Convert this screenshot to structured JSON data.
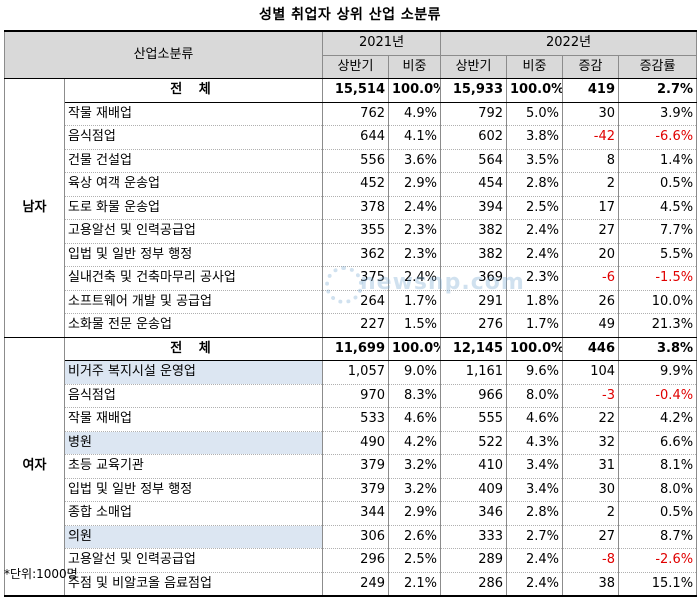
{
  "title": "성별 취업자 상위 산업 소분류",
  "header": {
    "industry": "산업소분류",
    "year2021": "2021년",
    "year2022": "2022년",
    "h1": "상반기",
    "ratio": "비중",
    "h1b": "상반기",
    "ratio2": "비중",
    "diff": "증감",
    "rate": "증감률"
  },
  "men": {
    "group": "남자",
    "total": {
      "label": "전 체",
      "v2021": "15,514",
      "r2021": "100.0%",
      "v2022": "15,933",
      "r2022": "100.0%",
      "diff": "419",
      "rate": "2.7%"
    },
    "rows": [
      {
        "name": "작물 재배업",
        "v2021": "762",
        "r2021": "4.9%",
        "v2022": "792",
        "r2022": "5.0%",
        "diff": "30",
        "rate": "3.9%",
        "neg": false
      },
      {
        "name": "음식점업",
        "v2021": "644",
        "r2021": "4.1%",
        "v2022": "602",
        "r2022": "3.8%",
        "diff": "-42",
        "rate": "-6.6%",
        "neg": true
      },
      {
        "name": "건물 건설업",
        "v2021": "556",
        "r2021": "3.6%",
        "v2022": "564",
        "r2022": "3.5%",
        "diff": "8",
        "rate": "1.4%",
        "neg": false
      },
      {
        "name": "육상 여객 운송업",
        "v2021": "452",
        "r2021": "2.9%",
        "v2022": "454",
        "r2022": "2.8%",
        "diff": "2",
        "rate": "0.5%",
        "neg": false
      },
      {
        "name": "도로 화물 운송업",
        "v2021": "378",
        "r2021": "2.4%",
        "v2022": "394",
        "r2022": "2.5%",
        "diff": "17",
        "rate": "4.5%",
        "neg": false
      },
      {
        "name": "고용알선 및 인력공급업",
        "v2021": "355",
        "r2021": "2.3%",
        "v2022": "382",
        "r2022": "2.4%",
        "diff": "27",
        "rate": "7.7%",
        "neg": false
      },
      {
        "name": "입법 및 일반 정부 행정",
        "v2021": "362",
        "r2021": "2.3%",
        "v2022": "382",
        "r2022": "2.4%",
        "diff": "20",
        "rate": "5.5%",
        "neg": false
      },
      {
        "name": "실내건축 및 건축마무리 공사업",
        "v2021": "375",
        "r2021": "2.4%",
        "v2022": "369",
        "r2022": "2.3%",
        "diff": "-6",
        "rate": "-1.5%",
        "neg": true
      },
      {
        "name": "소프트웨어 개발 및 공급업",
        "v2021": "264",
        "r2021": "1.7%",
        "v2022": "291",
        "r2022": "1.8%",
        "diff": "26",
        "rate": "10.0%",
        "neg": false
      },
      {
        "name": "소화물 전문 운송업",
        "v2021": "227",
        "r2021": "1.5%",
        "v2022": "276",
        "r2022": "1.7%",
        "diff": "49",
        "rate": "21.3%",
        "neg": false
      }
    ]
  },
  "women": {
    "group": "여자",
    "total": {
      "label": "전 체",
      "v2021": "11,699",
      "r2021": "100.0%",
      "v2022": "12,145",
      "r2022": "100.0%",
      "diff": "446",
      "rate": "3.8%"
    },
    "rows": [
      {
        "name": "비거주 복지시설 운영업",
        "v2021": "1,057",
        "r2021": "9.0%",
        "v2022": "1,161",
        "r2022": "9.6%",
        "diff": "104",
        "rate": "9.9%",
        "neg": false,
        "hl": true
      },
      {
        "name": "음식점업",
        "v2021": "970",
        "r2021": "8.3%",
        "v2022": "966",
        "r2022": "8.0%",
        "diff": "-3",
        "rate": "-0.4%",
        "neg": true,
        "hl": false
      },
      {
        "name": "작물 재배업",
        "v2021": "533",
        "r2021": "4.6%",
        "v2022": "555",
        "r2022": "4.6%",
        "diff": "22",
        "rate": "4.2%",
        "neg": false,
        "hl": false
      },
      {
        "name": "병원",
        "v2021": "490",
        "r2021": "4.2%",
        "v2022": "522",
        "r2022": "4.3%",
        "diff": "32",
        "rate": "6.6%",
        "neg": false,
        "hl": true
      },
      {
        "name": "초등 교육기관",
        "v2021": "379",
        "r2021": "3.2%",
        "v2022": "410",
        "r2022": "3.4%",
        "diff": "31",
        "rate": "8.1%",
        "neg": false,
        "hl": false
      },
      {
        "name": "입법 및 일반 정부 행정",
        "v2021": "379",
        "r2021": "3.2%",
        "v2022": "409",
        "r2022": "3.4%",
        "diff": "30",
        "rate": "8.0%",
        "neg": false,
        "hl": false
      },
      {
        "name": "종합 소매업",
        "v2021": "344",
        "r2021": "2.9%",
        "v2022": "346",
        "r2022": "2.8%",
        "diff": "2",
        "rate": "0.5%",
        "neg": false,
        "hl": false
      },
      {
        "name": "의원",
        "v2021": "306",
        "r2021": "2.6%",
        "v2022": "333",
        "r2022": "2.7%",
        "diff": "27",
        "rate": "8.7%",
        "neg": false,
        "hl": true
      },
      {
        "name": "고용알선 및 인력공급업",
        "v2021": "296",
        "r2021": "2.5%",
        "v2022": "289",
        "r2022": "2.4%",
        "diff": "-8",
        "rate": "-2.6%",
        "neg": true,
        "hl": false
      },
      {
        "name": "주점 및 비알코올 음료점업",
        "v2021": "249",
        "r2021": "2.1%",
        "v2022": "286",
        "r2022": "2.4%",
        "diff": "38",
        "rate": "15.1%",
        "neg": false,
        "hl": false
      }
    ]
  },
  "footnote": "*단위:1000명",
  "watermark": "newsnp.com",
  "colors": {
    "negative": "#e00000",
    "header_bg": "#d9d9d9",
    "highlight_bg": "#dce6f2"
  }
}
